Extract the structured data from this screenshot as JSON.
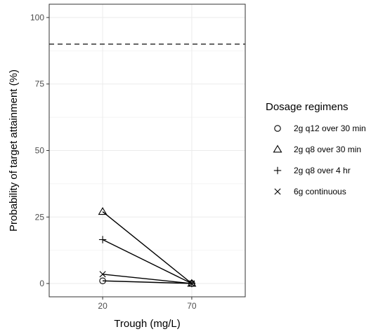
{
  "chart_data": {
    "type": "line",
    "title": "",
    "xlabel": "Trough (mg/L)",
    "ylabel": "Probability of target attainment (%)",
    "x": [
      20,
      70
    ],
    "x_tick_labels": [
      "20",
      "70"
    ],
    "xlim": [
      -10,
      100
    ],
    "ylim": [
      -5,
      105
    ],
    "yticks": [
      0,
      25,
      50,
      75,
      100
    ],
    "y_tick_labels": [
      "0",
      "25",
      "50",
      "75",
      "100"
    ],
    "grid": true,
    "reference_line": {
      "y": 90,
      "style": "dashed"
    },
    "legend": {
      "title": "Dosage regimens",
      "placement": "right"
    },
    "series": [
      {
        "name": "2g q12 over 30 min",
        "marker": "circle",
        "values": [
          1,
          0
        ]
      },
      {
        "name": "2g q8 over 30 min",
        "marker": "triangle",
        "values": [
          27,
          0
        ]
      },
      {
        "name": "2g q8 over 4 hr",
        "marker": "plus",
        "values": [
          16.5,
          0
        ]
      },
      {
        "name": "6g continuous",
        "marker": "cross",
        "values": [
          3.5,
          0
        ]
      }
    ],
    "colors": {
      "line": "#000000",
      "grid": "#ebebeb",
      "panel_border": "#333333"
    }
  }
}
